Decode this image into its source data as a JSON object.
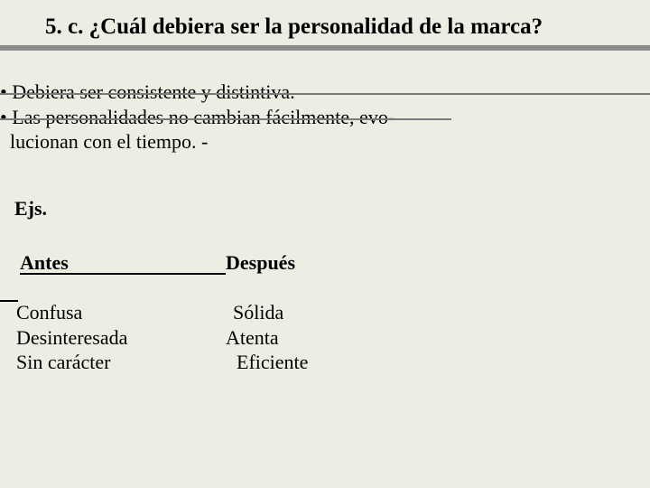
{
  "title": "5. c. ¿Cuál debiera ser la personalidad de la marca?",
  "bullets": {
    "b1": "• Debiera ser consistente y distintiva.",
    "b2": "• Las personalidades no cambian fácilmente, evo-",
    "b3": "  lucionan con el tiempo. -"
  },
  "ejs": "Ejs.",
  "headers": {
    "antes": "Antes",
    "despues": "Después"
  },
  "before": {
    "r1": "Confusa",
    "r2": "Desinteresada",
    "r3": "Sin carácter"
  },
  "after": {
    "r1": "Sólida",
    "r2": "Atenta",
    "r3": "Eficiente"
  },
  "colors": {
    "background": "#eeede3",
    "title_underline": "#8c8c8c",
    "horiz_line": "#7a7a7a",
    "header_line": "#000000",
    "text": "#000000"
  },
  "typography": {
    "font_family": "Times New Roman",
    "title_fontsize": 25,
    "body_fontsize": 22
  }
}
